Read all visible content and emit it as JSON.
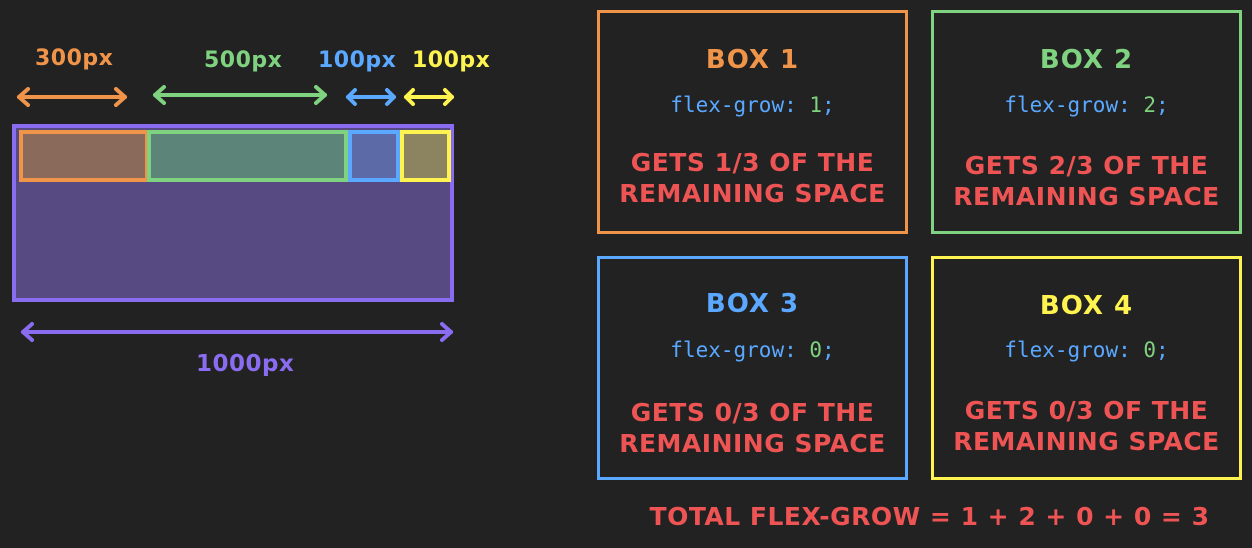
{
  "colors": {
    "background": "#222222",
    "orange": "#f0944a",
    "green": "#7fd27f",
    "blue": "#5aa8ff",
    "yellow": "#fff44f",
    "purple": "#8a6cf0",
    "red": "#ef5454"
  },
  "diagram": {
    "widths": [
      {
        "label": "300px",
        "color": "#f0944a"
      },
      {
        "label": "500px",
        "color": "#7fd27f"
      },
      {
        "label": "100px",
        "color": "#5aa8ff"
      },
      {
        "label": "100px",
        "color": "#fff44f"
      }
    ],
    "container_width_label": "1000px"
  },
  "boxes": [
    {
      "title": "BOX 1",
      "code_prop": "flex-grow: ",
      "code_value": "1",
      "code_end": ";",
      "desc_line1": "GETS 1/3 OF THE",
      "desc_line2": "REMAINING SPACE",
      "color": "#f0944a"
    },
    {
      "title": "BOX 2",
      "code_prop": "flex-grow: ",
      "code_value": "2",
      "code_end": ";",
      "desc_line1": "GETS 2/3  OF THE",
      "desc_line2": "REMAINING SPACE",
      "color": "#7fd27f"
    },
    {
      "title": "BOX 3",
      "code_prop": "flex-grow: ",
      "code_value": "0",
      "code_end": ";",
      "desc_line1": "GETS 0/3 OF THE",
      "desc_line2": "REMAINING SPACE",
      "color": "#5aa8ff"
    },
    {
      "title": "BOX 4",
      "code_prop": "flex-grow: ",
      "code_value": "0",
      "code_end": ";",
      "desc_line1": "GETS 0/3 OF THE",
      "desc_line2": "REMAINING SPACE",
      "color": "#fff44f"
    }
  ],
  "total_text": "TOTAL FLEX-GROW = 1 + 2 + 0 + 0 = 3"
}
